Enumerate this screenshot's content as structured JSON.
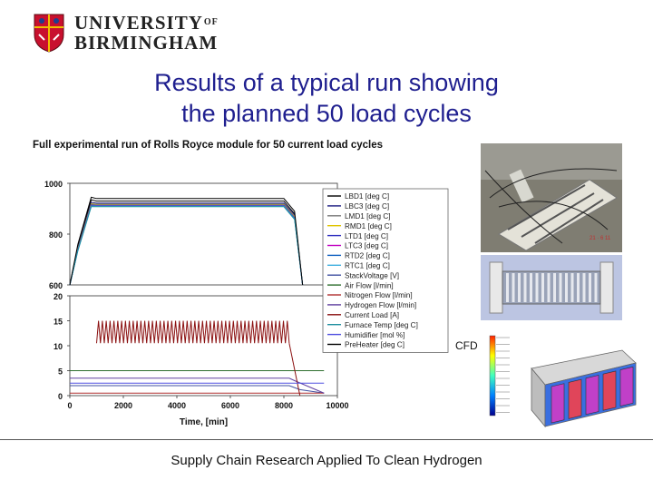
{
  "header": {
    "university_line1": "UNIVERSITY",
    "university_of": "OF",
    "university_line2": "BIRMINGHAM"
  },
  "slide": {
    "title_line1": "Results of a typical run showing",
    "title_line2": "the planned 50 load cycles",
    "footer": "Supply Chain Research Applied To Clean Hydrogen",
    "cfd_label": "CFD"
  },
  "chart_data": {
    "type": "line",
    "title": "Full experimental run of Rolls Royce module for 50 current load cycles",
    "xlabel": "Time, [min]",
    "ylabel": "",
    "xlim": [
      0,
      10000
    ],
    "x_ticks": [
      0,
      2000,
      4000,
      6000,
      8000,
      10000
    ],
    "upper_panel": {
      "ylim": [
        600,
        1000
      ],
      "y_ticks": [
        600,
        800,
        1000
      ]
    },
    "lower_panel": {
      "ylim": [
        0,
        20
      ],
      "y_ticks": [
        0,
        5,
        10,
        15,
        20
      ]
    },
    "load_cycles": 50,
    "legend_position": "right",
    "series": [
      {
        "name": "LBD1 [deg C]",
        "color": "#000000",
        "panel": "upper",
        "x": [
          0,
          300,
          800,
          1000,
          8000,
          8400,
          8700
        ],
        "y": [
          600,
          750,
          935,
          930,
          930,
          880,
          600
        ]
      },
      {
        "name": "LBC3 [deg C]",
        "color": "#1a1a80",
        "panel": "upper",
        "x": [
          0,
          300,
          800,
          1000,
          8000,
          8400,
          8700
        ],
        "y": [
          600,
          745,
          925,
          922,
          922,
          875,
          600
        ]
      },
      {
        "name": "LMD1 [deg C]",
        "color": "#7a7a7a",
        "panel": "upper",
        "x": [
          0,
          300,
          800,
          1000,
          8000,
          8400,
          8700
        ],
        "y": [
          600,
          742,
          920,
          918,
          918,
          870,
          600
        ]
      },
      {
        "name": "RMD1 [deg C]",
        "color": "#e0c400",
        "panel": "upper",
        "x": [
          0,
          300,
          800,
          1000,
          8000,
          8400,
          8700
        ],
        "y": [
          600,
          740,
          918,
          916,
          916,
          868,
          600
        ]
      },
      {
        "name": "LTD1 [deg C]",
        "color": "#3030c0",
        "panel": "upper",
        "x": [
          0,
          300,
          800,
          1000,
          8000,
          8400,
          8700
        ],
        "y": [
          600,
          738,
          915,
          914,
          914,
          865,
          600
        ]
      },
      {
        "name": "LTC3 [deg C]",
        "color": "#c000c0",
        "panel": "upper",
        "x": [
          0,
          300,
          800,
          1000,
          8000,
          8400,
          8700
        ],
        "y": [
          600,
          737,
          913,
          912,
          912,
          863,
          600
        ]
      },
      {
        "name": "RTD2 [deg C]",
        "color": "#1060c0",
        "panel": "upper",
        "x": [
          0,
          300,
          800,
          1000,
          8000,
          8400,
          8700
        ],
        "y": [
          600,
          736,
          912,
          911,
          911,
          862,
          600
        ]
      },
      {
        "name": "RTC1 [deg C]",
        "color": "#40b0e0",
        "panel": "upper",
        "x": [
          0,
          300,
          800,
          1000,
          8000,
          8400,
          8700
        ],
        "y": [
          600,
          735,
          910,
          910,
          910,
          860,
          600
        ]
      },
      {
        "name": "StackVoltage [V]",
        "color": "#4050a0",
        "panel": "lower",
        "x": [
          0,
          1000,
          8200,
          8600,
          9500
        ],
        "y": [
          2.0,
          2.0,
          2.0,
          1.2,
          0.5
        ]
      },
      {
        "name": "Air Flow [l/min]",
        "color": "#2f6f2f",
        "panel": "lower",
        "x": [
          0,
          1000,
          8200,
          8400,
          9500
        ],
        "y": [
          5.0,
          5.0,
          5.0,
          5.0,
          5.0
        ]
      },
      {
        "name": "Nitrogen Flow [l/min]",
        "color": "#b03030",
        "panel": "lower",
        "x": [
          0,
          1000,
          8200,
          8400,
          9500
        ],
        "y": [
          0.5,
          0.5,
          0.5,
          0.5,
          0.5
        ]
      },
      {
        "name": "Hydrogen Flow [l/min]",
        "color": "#6040a0",
        "panel": "lower",
        "x": [
          0,
          1000,
          8200,
          8400,
          9500
        ],
        "y": [
          3.5,
          3.5,
          3.5,
          3.0,
          0.5
        ]
      },
      {
        "name": "Current Load [A]",
        "color": "#8b1010",
        "panel": "lower",
        "cycle": {
          "x_start": 1000,
          "x_end": 8200,
          "count": 50,
          "low": 10.5,
          "high": 15.0
        }
      },
      {
        "name": "Furnace Temp [deg C]",
        "color": "#2090a0",
        "panel": "upper",
        "x": [
          0,
          300,
          800,
          1000,
          8000,
          8400,
          8700
        ],
        "y": [
          600,
          735,
          908,
          908,
          908,
          858,
          600
        ]
      },
      {
        "name": "Humidifier [mol %]",
        "color": "#5050e0",
        "panel": "lower",
        "x": [
          0,
          1000,
          8200,
          8400,
          9500
        ],
        "y": [
          2.5,
          2.5,
          2.5,
          2.5,
          2.5
        ]
      },
      {
        "name": "PreHeater [deg C]",
        "color": "#000000",
        "panel": "upper",
        "x": [
          0,
          300,
          800,
          1000,
          8000,
          8400,
          8700
        ],
        "y": [
          600,
          760,
          945,
          940,
          940,
          890,
          600
        ]
      }
    ]
  },
  "images": {
    "photo_rig": "test-rig-photo",
    "photo_module": "fuel-cell-module-photo",
    "cfd": "cfd-colormap-render"
  }
}
